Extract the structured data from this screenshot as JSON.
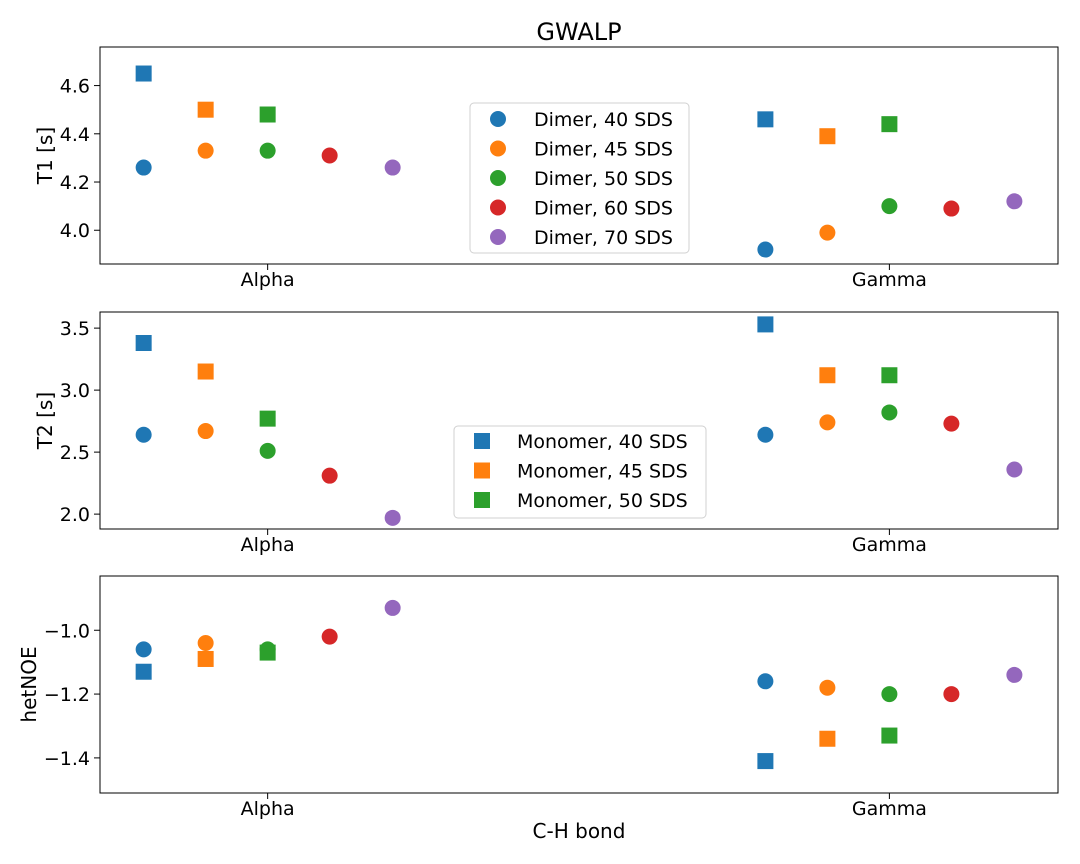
{
  "chart_data": [
    {
      "type": "scatter",
      "title": "GWALP",
      "xlabel": "",
      "ylabel": "T1 [s]",
      "categories": [
        "Alpha",
        "Gamma"
      ],
      "yticks": [
        4.0,
        4.2,
        4.4,
        4.6
      ],
      "ytick_labels": [
        "4.0",
        "4.2",
        "4.4",
        "4.6"
      ],
      "ylim": [
        3.86,
        4.76
      ],
      "legend": {
        "placement": "center",
        "entries": [
          "Dimer, 40 SDS",
          "Dimer, 45 SDS",
          "Dimer, 50 SDS",
          "Dimer, 60 SDS",
          "Dimer, 70 SDS"
        ]
      },
      "series": [
        {
          "name": "Dimer, 40 SDS",
          "marker": "circle",
          "color": "#1f77b4",
          "values": [
            4.26,
            3.92
          ]
        },
        {
          "name": "Dimer, 45 SDS",
          "marker": "circle",
          "color": "#ff7f0e",
          "values": [
            4.33,
            3.99
          ]
        },
        {
          "name": "Dimer, 50 SDS",
          "marker": "circle",
          "color": "#2ca02c",
          "values": [
            4.33,
            4.1
          ]
        },
        {
          "name": "Dimer, 60 SDS",
          "marker": "circle",
          "color": "#d62728",
          "values": [
            4.31,
            4.09
          ]
        },
        {
          "name": "Dimer, 70 SDS",
          "marker": "circle",
          "color": "#9467bd",
          "values": [
            4.26,
            4.12
          ]
        },
        {
          "name": "Monomer, 40 SDS",
          "marker": "square",
          "color": "#1f77b4",
          "values": [
            4.65,
            4.46
          ]
        },
        {
          "name": "Monomer, 45 SDS",
          "marker": "square",
          "color": "#ff7f0e",
          "values": [
            4.5,
            4.39
          ]
        },
        {
          "name": "Monomer, 50 SDS",
          "marker": "square",
          "color": "#2ca02c",
          "values": [
            4.48,
            4.44
          ]
        }
      ]
    },
    {
      "type": "scatter",
      "title": "",
      "xlabel": "",
      "ylabel": "T2 [s]",
      "categories": [
        "Alpha",
        "Gamma"
      ],
      "yticks": [
        2.0,
        2.5,
        3.0,
        3.5
      ],
      "ytick_labels": [
        "2.0",
        "2.5",
        "3.0",
        "3.5"
      ],
      "ylim": [
        1.88,
        3.63
      ],
      "legend": {
        "placement": "lower center",
        "entries": [
          "Monomer, 40 SDS",
          "Monomer, 45 SDS",
          "Monomer, 50 SDS"
        ]
      },
      "series": [
        {
          "name": "Dimer, 40 SDS",
          "marker": "circle",
          "color": "#1f77b4",
          "values": [
            2.64,
            2.64
          ]
        },
        {
          "name": "Dimer, 45 SDS",
          "marker": "circle",
          "color": "#ff7f0e",
          "values": [
            2.67,
            2.74
          ]
        },
        {
          "name": "Dimer, 50 SDS",
          "marker": "circle",
          "color": "#2ca02c",
          "values": [
            2.51,
            2.82
          ]
        },
        {
          "name": "Dimer, 60 SDS",
          "marker": "circle",
          "color": "#d62728",
          "values": [
            2.31,
            2.73
          ]
        },
        {
          "name": "Dimer, 70 SDS",
          "marker": "circle",
          "color": "#9467bd",
          "values": [
            1.97,
            2.36
          ]
        },
        {
          "name": "Monomer, 40 SDS",
          "marker": "square",
          "color": "#1f77b4",
          "values": [
            3.38,
            3.53
          ]
        },
        {
          "name": "Monomer, 45 SDS",
          "marker": "square",
          "color": "#ff7f0e",
          "values": [
            3.15,
            3.12
          ]
        },
        {
          "name": "Monomer, 50 SDS",
          "marker": "square",
          "color": "#2ca02c",
          "values": [
            2.77,
            3.12
          ]
        }
      ]
    },
    {
      "type": "scatter",
      "title": "",
      "xlabel": "C-H bond",
      "ylabel": "hetNOE",
      "categories": [
        "Alpha",
        "Gamma"
      ],
      "yticks": [
        -1.4,
        -1.2,
        -1.0
      ],
      "ytick_labels": [
        "−1.4",
        "−1.2",
        "−1.0"
      ],
      "ylim": [
        -1.51,
        -0.83
      ],
      "legend": null,
      "series": [
        {
          "name": "Dimer, 40 SDS",
          "marker": "circle",
          "color": "#1f77b4",
          "values": [
            -1.06,
            -1.16
          ]
        },
        {
          "name": "Dimer, 45 SDS",
          "marker": "circle",
          "color": "#ff7f0e",
          "values": [
            -1.04,
            -1.18
          ]
        },
        {
          "name": "Dimer, 50 SDS",
          "marker": "circle",
          "color": "#2ca02c",
          "values": [
            -1.06,
            -1.2
          ]
        },
        {
          "name": "Dimer, 60 SDS",
          "marker": "circle",
          "color": "#d62728",
          "values": [
            -1.02,
            -1.2
          ]
        },
        {
          "name": "Dimer, 70 SDS",
          "marker": "circle",
          "color": "#9467bd",
          "values": [
            -0.93,
            -1.14
          ]
        },
        {
          "name": "Monomer, 40 SDS",
          "marker": "square",
          "color": "#1f77b4",
          "values": [
            -1.13,
            -1.41
          ]
        },
        {
          "name": "Monomer, 45 SDS",
          "marker": "square",
          "color": "#ff7f0e",
          "values": [
            -1.09,
            -1.34
          ]
        },
        {
          "name": "Monomer, 50 SDS",
          "marker": "square",
          "color": "#2ca02c",
          "values": [
            -1.07,
            -1.33
          ]
        }
      ]
    }
  ]
}
